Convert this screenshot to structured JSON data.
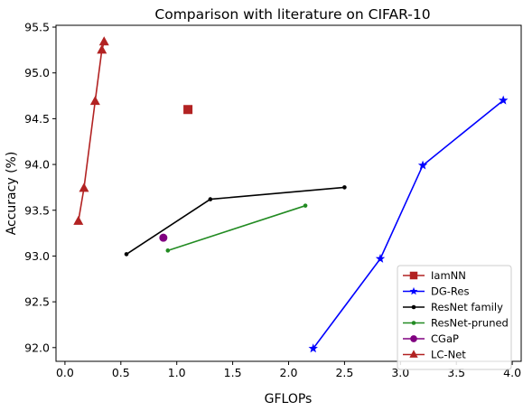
{
  "chart_data": {
    "type": "line",
    "title": "Comparison with literature on CIFAR-10",
    "xlabel": "GFLOPs",
    "ylabel": "Accuracy (%)",
    "xlim": [
      -0.08,
      4.08
    ],
    "ylim": [
      91.85,
      95.52
    ],
    "xticks": [
      0.0,
      0.5,
      1.0,
      1.5,
      2.0,
      2.5,
      3.0,
      3.5,
      4.0
    ],
    "yticks": [
      92.0,
      92.5,
      93.0,
      93.5,
      94.0,
      94.5,
      95.0,
      95.5
    ],
    "xtick_labels": [
      "0.0",
      "0.5",
      "1.0",
      "1.5",
      "2.0",
      "2.5",
      "3.0",
      "3.5",
      "4.0"
    ],
    "ytick_labels": [
      "92.0",
      "92.5",
      "93.0",
      "93.5",
      "94.0",
      "94.5",
      "95.0",
      "95.5"
    ],
    "grid": false,
    "legend_position": "lower-right",
    "series": [
      {
        "name": "IamNN",
        "color": "#b22222",
        "marker": "square",
        "line": false,
        "x": [
          1.1
        ],
        "y": [
          94.6
        ]
      },
      {
        "name": "DG-Res",
        "color": "#0000ff",
        "marker": "star",
        "line": true,
        "x": [
          2.22,
          2.82,
          3.2,
          3.92
        ],
        "y": [
          91.99,
          92.97,
          93.99,
          94.7
        ]
      },
      {
        "name": "ResNet family",
        "color": "#000000",
        "marker": "dot",
        "line": true,
        "x": [
          0.55,
          1.3,
          2.5
        ],
        "y": [
          93.02,
          93.62,
          93.75
        ]
      },
      {
        "name": "ResNet-pruned",
        "color": "#228b22",
        "marker": "dot",
        "line": true,
        "x": [
          0.92,
          2.15
        ],
        "y": [
          93.06,
          93.55
        ]
      },
      {
        "name": "CGaP",
        "color": "#800080",
        "marker": "circle",
        "line": false,
        "x": [
          0.88
        ],
        "y": [
          93.2
        ]
      },
      {
        "name": "LC-Net",
        "color": "#b22222",
        "marker": "triangle",
        "line": true,
        "x": [
          0.12,
          0.17,
          0.27,
          0.33,
          0.35
        ],
        "y": [
          93.38,
          93.74,
          94.69,
          95.25,
          95.34
        ]
      }
    ]
  }
}
